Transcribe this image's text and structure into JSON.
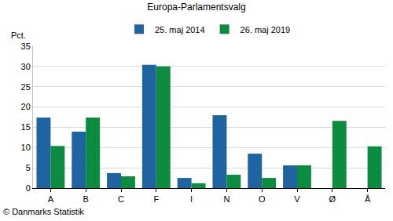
{
  "chart_data": {
    "type": "bar",
    "title": "Europa-Parlamentsvalg",
    "ylabel": "Pct.",
    "source": "© Danmarks Statistik",
    "categories": [
      "A",
      "B",
      "C",
      "F",
      "I",
      "N",
      "O",
      "V",
      "Ø",
      "Å"
    ],
    "series": [
      {
        "name": "25. maj 2014",
        "color": "#1f64a0",
        "values": [
          17.4,
          13.9,
          3.7,
          30.4,
          2.5,
          18.0,
          8.5,
          5.6,
          null,
          null
        ]
      },
      {
        "name": "26. maj 2019",
        "color": "#0b8c3e",
        "values": [
          10.4,
          17.4,
          2.9,
          30.0,
          1.2,
          3.3,
          2.5,
          5.6,
          16.6,
          10.3
        ]
      }
    ],
    "ylim": [
      0,
      35
    ],
    "yticks": [
      0,
      5,
      10,
      15,
      20,
      25,
      30,
      35
    ],
    "grid": true,
    "legend": "top"
  }
}
